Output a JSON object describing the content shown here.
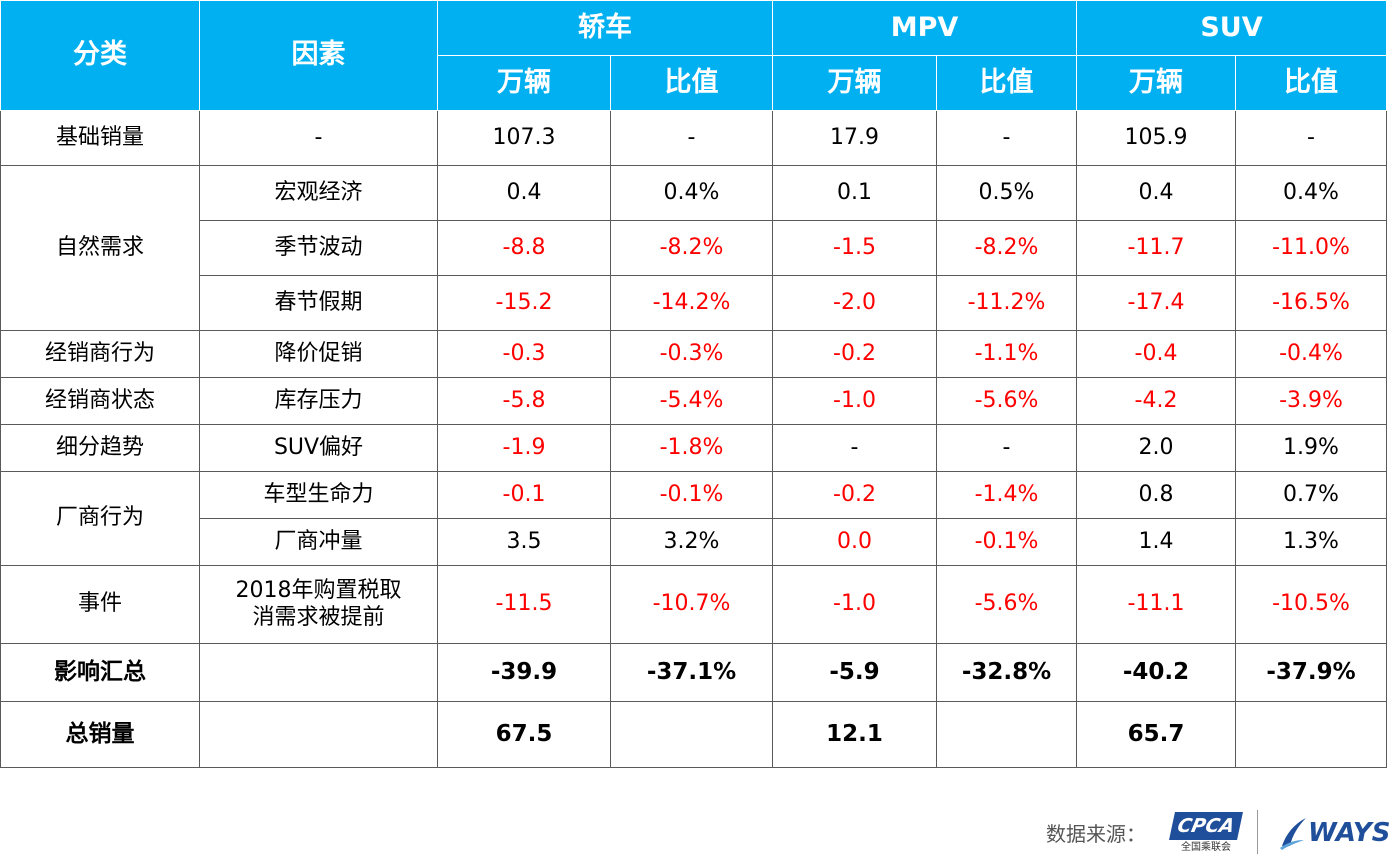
{
  "header": {
    "category": "分类",
    "factor": "因素",
    "groups": [
      "轿车",
      "MPV",
      "SUV"
    ],
    "sub": [
      "万辆",
      "比值",
      "万辆",
      "比值",
      "万辆",
      "比值"
    ]
  },
  "rows": {
    "base": {
      "category": "基础销量",
      "factor": "-",
      "vals": [
        "107.3",
        "-",
        "17.9",
        "-",
        "105.9",
        "-"
      ]
    },
    "natural": {
      "category": "自然需求",
      "macro": {
        "factor": "宏观经济",
        "vals": [
          "0.4",
          "0.4%",
          "0.1",
          "0.5%",
          "0.4",
          "0.4%"
        ]
      },
      "seasonal": {
        "factor": "季节波动",
        "vals": [
          "-8.8",
          "-8.2%",
          "-1.5",
          "-8.2%",
          "-11.7",
          "-11.0%"
        ]
      },
      "spring": {
        "factor": "春节假期",
        "vals": [
          "-15.2",
          "-14.2%",
          "-2.0",
          "-11.2%",
          "-17.4",
          "-16.5%"
        ]
      }
    },
    "dealer_behavior": {
      "category": "经销商行为",
      "factor": "降价促销",
      "vals": [
        "-0.3",
        "-0.3%",
        "-0.2",
        "-1.1%",
        "-0.4",
        "-0.4%"
      ]
    },
    "dealer_status": {
      "category": "经销商状态",
      "factor": "库存压力",
      "vals": [
        "-5.8",
        "-5.4%",
        "-1.0",
        "-5.6%",
        "-4.2",
        "-3.9%"
      ]
    },
    "segment": {
      "category": "细分趋势",
      "factor": "SUV偏好",
      "vals": [
        "-1.9",
        "-1.8%",
        "-",
        "-",
        "2.0",
        "1.9%"
      ]
    },
    "maker": {
      "category": "厂商行为",
      "lifecycle": {
        "factor": "车型生命力",
        "vals": [
          "-0.1",
          "-0.1%",
          "-0.2",
          "-1.4%",
          "0.8",
          "0.7%"
        ]
      },
      "push": {
        "factor": "厂商冲量",
        "vals": [
          "3.5",
          "3.2%",
          "0.0",
          "-0.1%",
          "1.4",
          "1.3%"
        ]
      }
    },
    "event": {
      "category": "事件",
      "factor_line1": "2018年购置税取",
      "factor_line2": "消需求被提前",
      "vals": [
        "-11.5",
        "-10.7%",
        "-1.0",
        "-5.6%",
        "-11.1",
        "-10.5%"
      ]
    },
    "summary": {
      "category": "影响汇总",
      "vals": [
        "-39.9",
        "-37.1%",
        "-5.9",
        "-32.8%",
        "-40.2",
        "-37.9%"
      ]
    },
    "total": {
      "category": "总销量",
      "vals": [
        "67.5",
        "",
        "12.1",
        "",
        "65.7",
        ""
      ]
    }
  },
  "footer": {
    "source_label": "数据来源：",
    "cpca_logo": "CPCA",
    "cpca_sub": "全国乘联会",
    "ways_logo": "WAYS"
  },
  "colors": {
    "header_bg": "#00b0f0",
    "negative": "#ff0000",
    "border": "#5a5a5a",
    "logo_blue": "#1f4e9a"
  }
}
